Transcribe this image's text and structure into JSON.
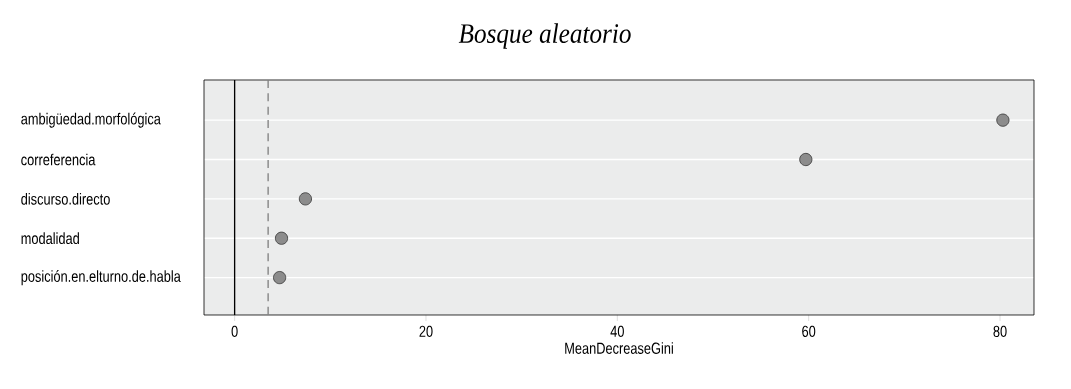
{
  "chart_data": {
    "type": "scatter",
    "orientation": "horizontal",
    "title": "Bosque aleatorio",
    "xlabel": "MeanDecreaseGini",
    "categories": [
      "ambigüedad.morfológica",
      "correferencia",
      "discurso.directo",
      "modalidad",
      "posición.en.elturno.de.habla"
    ],
    "values": [
      80.3,
      59.7,
      7.4,
      4.9,
      4.7
    ],
    "color": "#8c8c8c",
    "marker": "circle",
    "xlim": [
      -3.2,
      83.55
    ],
    "xticks": [
      0,
      20,
      40,
      60,
      80
    ],
    "grid": "y",
    "ref_lines": [
      {
        "axis": "x",
        "value": 0,
        "color": "#000000",
        "line_style": "solid"
      },
      {
        "axis": "x",
        "value": 3.5,
        "color": "#808080",
        "line_style": "dashed"
      }
    ]
  }
}
